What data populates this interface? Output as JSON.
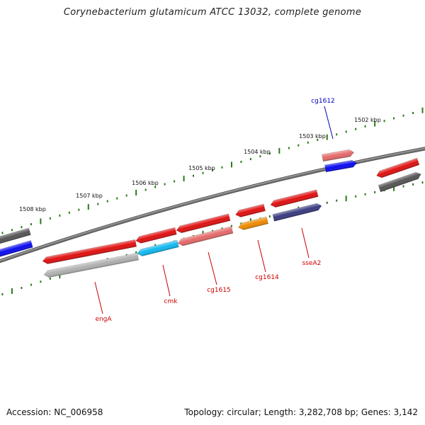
{
  "title": "Corynebacterium glutamicum ATCC 13032, complete genome",
  "footer": {
    "accession": "Accession: NC_006958",
    "summary": "Topology: circular; Length: 3,282,708 bp; Genes: 3,142"
  },
  "colors": {
    "backbone": "#777777",
    "tick": "#2a7a1a",
    "label_red": "#cc0000",
    "label_blue": "#0000bb"
  },
  "ticks": [
    "1502 kbp",
    "1503 kbp",
    "1504 kbp",
    "1505 kbp",
    "1506 kbp",
    "1507 kbp",
    "1508 kbp"
  ],
  "genes": [
    {
      "id": "cg1612",
      "label": "cg1612",
      "strand": "+",
      "color": "#e56a6a",
      "labelColor": "label_blue"
    },
    {
      "id": "right-red",
      "label": "",
      "strand": "-",
      "color": "#e01010"
    },
    {
      "id": "right-gray",
      "label": "",
      "strand": "+",
      "color": "#555555"
    },
    {
      "id": "right-blue",
      "label": "",
      "strand": "+",
      "color": "#0a0af0"
    },
    {
      "id": "sseA2",
      "label": "sseA2",
      "strand": "-",
      "color": "#e01010",
      "labelColor": "label_red"
    },
    {
      "id": "sseA2-dup",
      "label": "",
      "strand": "+",
      "color": "#3a3a80"
    },
    {
      "id": "cg1614",
      "label": "cg1614",
      "strand": "-",
      "color": "#ef8a00",
      "labelColor": "label_red"
    },
    {
      "id": "cg1614-red",
      "label": "",
      "strand": "-",
      "color": "#e01010"
    },
    {
      "id": "cg1615",
      "label": "cg1615",
      "strand": "-",
      "color": "#e56a6a",
      "labelColor": "label_red"
    },
    {
      "id": "cg1615-red",
      "label": "",
      "strand": "-",
      "color": "#e01010"
    },
    {
      "id": "cmk",
      "label": "cmk",
      "strand": "-",
      "color": "#10b8f0",
      "labelColor": "label_red"
    },
    {
      "id": "cmk-red",
      "label": "",
      "strand": "-",
      "color": "#e01010"
    },
    {
      "id": "engA",
      "label": "engA",
      "strand": "-",
      "color": "#b0b0b0",
      "labelColor": "label_red"
    },
    {
      "id": "engA-red",
      "label": "",
      "strand": "-",
      "color": "#e01010"
    },
    {
      "id": "left-gray",
      "label": "",
      "strand": "-",
      "color": "#555555"
    },
    {
      "id": "left-blue",
      "label": "",
      "strand": "-",
      "color": "#0a0af0"
    }
  ]
}
